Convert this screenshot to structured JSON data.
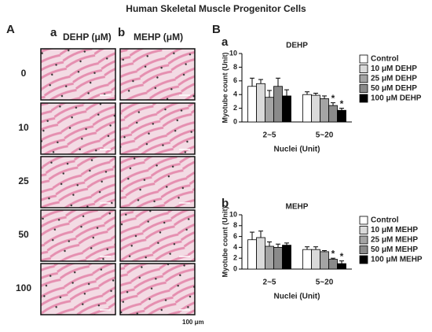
{
  "figure": {
    "title": "Human Skeletal Muscle Progenitor Cells",
    "panel_a": "A",
    "panel_b": "B",
    "columns": [
      {
        "label": "a",
        "title": "DEHP (μM)"
      },
      {
        "label": "b",
        "title": "MEHP (μM)"
      }
    ],
    "rows": [
      "0",
      "10",
      "25",
      "50",
      "100"
    ],
    "scale_bar": "100 μm"
  },
  "chart_data": [
    {
      "type": "bar",
      "panel": "a",
      "title": "DEHP",
      "x_label": "Nuclei (Unit)",
      "y_label": "Myotube count (Unit)",
      "categories": [
        "2~5",
        "5~20"
      ],
      "ylim": [
        0,
        10
      ],
      "yticks": [
        0,
        2,
        4,
        6,
        8,
        10
      ],
      "series": [
        {
          "name": "Control",
          "color": "#ffffff",
          "values": [
            5.2,
            4.0
          ],
          "errors": [
            1.2,
            0.4
          ],
          "significance": [
            null,
            null
          ]
        },
        {
          "name": "10 μM DEHP",
          "color": "#dadada",
          "values": [
            5.6,
            3.9
          ],
          "errors": [
            0.6,
            0.3
          ],
          "significance": [
            null,
            null
          ]
        },
        {
          "name": "25 μM DEHP",
          "color": "#a4a4a4",
          "values": [
            3.6,
            3.4
          ],
          "errors": [
            1.0,
            0.4
          ],
          "significance": [
            null,
            null
          ]
        },
        {
          "name": "50 μM DEHP",
          "color": "#8a8a8a",
          "values": [
            5.2,
            2.4
          ],
          "errors": [
            1.2,
            0.4
          ],
          "significance": [
            null,
            "*"
          ]
        },
        {
          "name": "100 μM DEHP",
          "color": "#000000",
          "values": [
            3.8,
            1.7
          ],
          "errors": [
            0.9,
            0.3
          ],
          "significance": [
            null,
            "*"
          ]
        }
      ]
    },
    {
      "type": "bar",
      "panel": "b",
      "title": "MEHP",
      "x_label": "Nuclei (Unit)",
      "y_label": "Myotube count (Unit)",
      "categories": [
        "2~5",
        "5~20"
      ],
      "ylim": [
        0,
        10
      ],
      "yticks": [
        0,
        2,
        4,
        6,
        8,
        10
      ],
      "series": [
        {
          "name": "Control",
          "color": "#ffffff",
          "values": [
            5.4,
            3.6
          ],
          "errors": [
            1.4,
            0.5
          ],
          "significance": [
            null,
            null
          ]
        },
        {
          "name": "10 μM MEHP",
          "color": "#dadada",
          "values": [
            5.8,
            3.6
          ],
          "errors": [
            1.2,
            0.5
          ],
          "significance": [
            null,
            null
          ]
        },
        {
          "name": "25 μM MEHP",
          "color": "#a4a4a4",
          "values": [
            4.2,
            3.2
          ],
          "errors": [
            0.8,
            0.2
          ],
          "significance": [
            null,
            null
          ]
        },
        {
          "name": "50 μM MEHP",
          "color": "#8a8a8a",
          "values": [
            4.0,
            1.8
          ],
          "errors": [
            0.6,
            0.2
          ],
          "significance": [
            null,
            "*"
          ]
        },
        {
          "name": "100 μM MEHP",
          "color": "#000000",
          "values": [
            4.4,
            1.0
          ],
          "errors": [
            0.4,
            0.5
          ],
          "significance": [
            null,
            "*"
          ]
        }
      ]
    }
  ]
}
